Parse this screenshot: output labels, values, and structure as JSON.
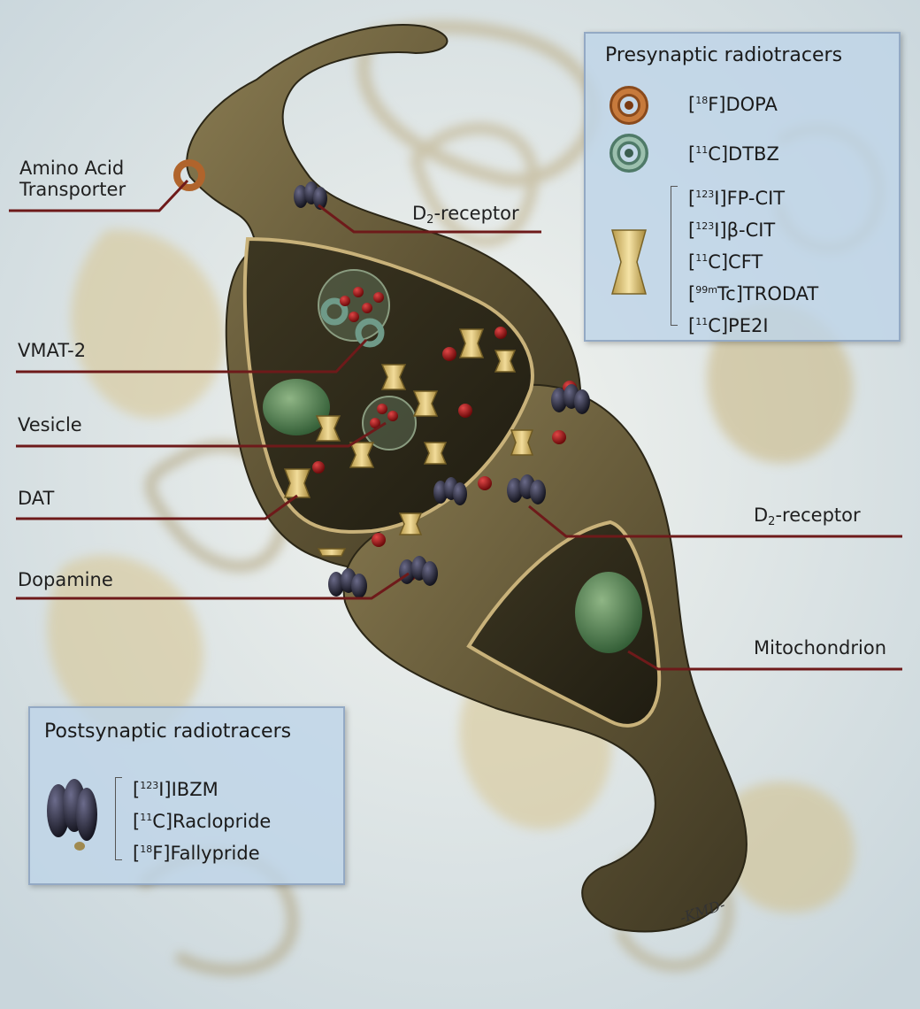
{
  "labels": {
    "amino_acid_transporter_line1": "Amino Acid",
    "amino_acid_transporter_line2": "Transporter",
    "d2_receptor_top_main": "D",
    "d2_receptor_top_sub": "2",
    "d2_receptor_top_rest": "-receptor",
    "vmat2": "VMAT-2",
    "vesicle": "Vesicle",
    "dat": "DAT",
    "dopamine": "Dopamine",
    "d2_receptor_right_main": "D",
    "d2_receptor_right_sub": "2",
    "d2_receptor_right_rest": "-receptor",
    "mitochondrion": "Mitochondrion"
  },
  "presynaptic": {
    "title": "Presynaptic radiotracers",
    "dopa": {
      "pre": "[",
      "sup": "18",
      "post": "F]DOPA"
    },
    "dtbz": {
      "pre": "[",
      "sup": "11",
      "post": "C]DTBZ"
    },
    "dat_tracers": [
      {
        "pre": "[",
        "sup": "123",
        "post": "I]FP-CIT"
      },
      {
        "pre": "[",
        "sup": "123",
        "post": "I]β-CIT"
      },
      {
        "pre": "[",
        "sup": "11",
        "post": "C]CFT"
      },
      {
        "pre": "[",
        "sup": "99m",
        "post": "Tc]TRODAT"
      },
      {
        "pre": "[",
        "sup": "11",
        "post": "C]PE2I"
      }
    ]
  },
  "postsynaptic": {
    "title": "Postsynaptic radiotracers",
    "tracers": [
      {
        "pre": "[",
        "sup": "123",
        "post": "I]IBZM"
      },
      {
        "pre": "[",
        "sup": "11",
        "post": "C]Raclopride"
      },
      {
        "pre": "[",
        "sup": "18",
        "post": "F]Fallypride"
      }
    ]
  },
  "signature": "-KMD-",
  "colors": {
    "neuron": "#6b5f3e",
    "neuron_dark": "#3e3722",
    "leader_line": "#6e1a1a",
    "dopa_ring": "#b0642c",
    "dtbz_ring": "#6f9a88",
    "dat_transporter": "#e3c77a",
    "d2_receptor": "#2a2a3e",
    "dopamine": "#9a1414",
    "mitochondrion": "#4f7a4a"
  }
}
